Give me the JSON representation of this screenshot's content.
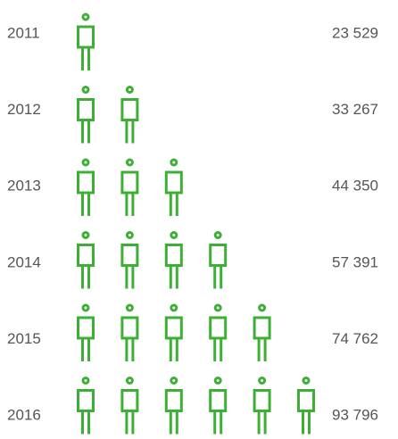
{
  "chart_data": {
    "type": "pictogram",
    "categories": [
      "2011",
      "2012",
      "2013",
      "2014",
      "2015",
      "2016"
    ],
    "values": [
      23529,
      33267,
      44350,
      57391,
      74762,
      93796
    ],
    "value_labels": [
      "23 529",
      "33 267",
      "44 350",
      "57 391",
      "74 762",
      "93 796"
    ],
    "icon_counts": [
      1,
      2,
      3,
      4,
      5,
      6
    ],
    "color": "#3cb034"
  }
}
